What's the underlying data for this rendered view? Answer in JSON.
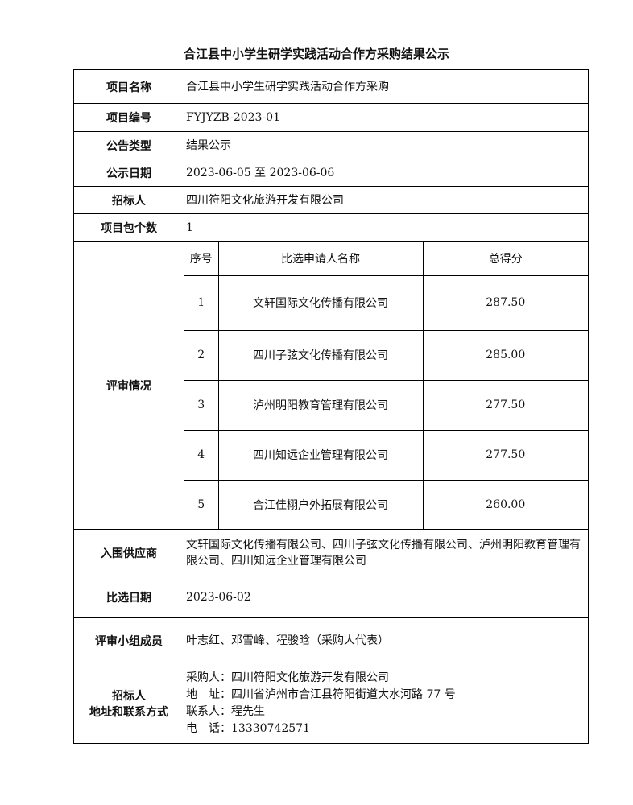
{
  "title": "合江县中小学生研学实践活动合作方采购结果公示",
  "rows": {
    "project_name": {
      "label": "项目名称",
      "value": "合江县中小学生研学实践活动合作方采购"
    },
    "project_no": {
      "label": "项目编号",
      "value": "FYJYZB-2023-01"
    },
    "notice_type": {
      "label": "公告类型",
      "value": "结果公示"
    },
    "notice_period": {
      "label": "公示日期",
      "value": "2023-06-05 至 2023-06-06"
    },
    "tenderer": {
      "label": "招标人",
      "value": "四川符阳文化旅游开发有限公司"
    },
    "package_count": {
      "label": "项目包个数",
      "value": "1"
    },
    "evaluation": {
      "label": "评审情况",
      "headers": [
        "序号",
        "比选申请人名称",
        "总得分"
      ],
      "items": [
        {
          "no": "1",
          "name": "文轩国际文化传播有限公司",
          "score": "287.50"
        },
        {
          "no": "2",
          "name": "四川子弦文化传播有限公司",
          "score": "285.00"
        },
        {
          "no": "3",
          "name": "泸州明阳教育管理有限公司",
          "score": "277.50"
        },
        {
          "no": "4",
          "name": "四川知远企业管理有限公司",
          "score": "277.50"
        },
        {
          "no": "5",
          "name": "合江佳栩户外拓展有限公司",
          "score": "260.00"
        }
      ]
    },
    "shortlisted": {
      "label": "入围供应商",
      "value": "文轩国际文化传播有限公司、四川子弦文化传播有限公司、泸州明阳教育管理有限公司、四川知远企业管理有限公司"
    },
    "selection_date": {
      "label": "比选日期",
      "value": "2023-06-02"
    },
    "panel": {
      "label": "评审小组成员",
      "value": "叶志红、邓雪峰、程骏晗（采购人代表）"
    },
    "contact": {
      "label_line1": "招标人",
      "label_line2": "地址和联系方式",
      "purchaser": "采购人：四川符阳文化旅游开发有限公司",
      "address": "地　址：四川省泸州市合江县符阳街道大水河路 77 号",
      "contact_person": "联系人：程先生",
      "phone": "电　话：13330742571"
    }
  }
}
